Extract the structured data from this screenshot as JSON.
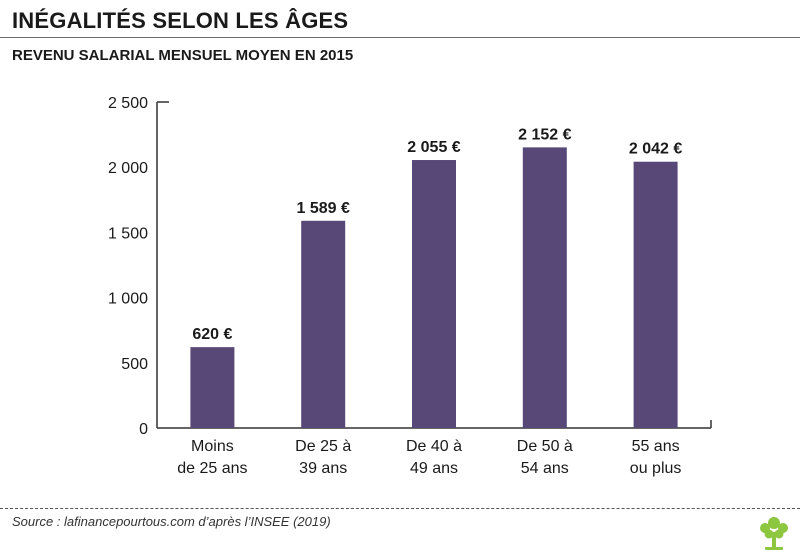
{
  "title": "INÉGALITÉS SELON LES ÂGES",
  "subtitle": "REVENU SALARIAL MENSUEL MOYEN EN 2015",
  "source": "Source : lafinancepourtous.com d’après l’INSEE (2019)",
  "logo_icon": "tree-icon",
  "colors": {
    "bar": "#574878",
    "axis": "#333333",
    "logo": "#8dc63f"
  },
  "chart_data": {
    "type": "bar",
    "title": "REVENU SALARIAL MENSUEL MOYEN EN 2015",
    "xlabel": "",
    "ylabel": "",
    "ylim": [
      0,
      2500
    ],
    "yticks": [
      0,
      500,
      1000,
      1500,
      2000,
      2500
    ],
    "ytick_labels": [
      "0",
      "500",
      "1 000",
      "1 500",
      "2 000",
      "2 500"
    ],
    "categories": [
      [
        "Moins",
        "de 25 ans"
      ],
      [
        "De 25 à",
        "39 ans"
      ],
      [
        "De 40 à",
        "49 ans"
      ],
      [
        "De 50 à",
        "54 ans"
      ],
      [
        "55 ans",
        "ou plus"
      ]
    ],
    "values": [
      620,
      1589,
      2055,
      2152,
      2042
    ],
    "value_labels": [
      "620 €",
      "1 589 €",
      "2 055 €",
      "2 152 €",
      "2 042 €"
    ],
    "grid": false,
    "legend": "none"
  }
}
